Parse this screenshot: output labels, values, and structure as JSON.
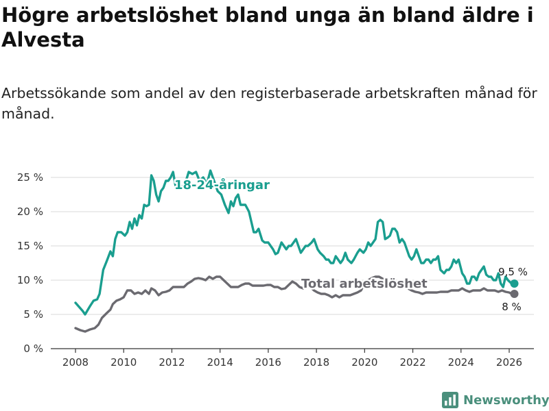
{
  "header": {
    "title": "Högre arbetslöshet bland unga än bland äldre i Alvesta",
    "subtitle": "Arbetssökande som andel av den registerbaserade arbetskraften månad för månad."
  },
  "brand": {
    "name": "Newsworthy",
    "logo_icon": "bar-chart-logo-icon",
    "color": "#4a8f7c"
  },
  "chart_data": {
    "type": "line",
    "title": "Högre arbetslöshet bland unga än bland äldre i Alvesta",
    "subtitle": "Arbetssökande som andel av den registerbaserade arbetskraften månad för månad.",
    "xlabel": "",
    "ylabel": "",
    "x_ticks": [
      "2008",
      "2010",
      "2012",
      "2014",
      "2016",
      "2018",
      "2020",
      "2022",
      "2024",
      "2026"
    ],
    "y_ticks": [
      "0 %",
      "5 %",
      "10 %",
      "15 %",
      "20 %",
      "25 %"
    ],
    "xlim": [
      2007.7,
      2026.8
    ],
    "ylim": [
      0,
      26.5
    ],
    "grid": true,
    "series": [
      {
        "name": "18-24-åringar",
        "color": "#1a9e8f",
        "end_label": "9,5 %",
        "points": [
          [
            2008.0,
            6.7
          ],
          [
            2008.3,
            5.5
          ],
          [
            2008.4,
            5.0
          ],
          [
            2008.6,
            6.2
          ],
          [
            2008.75,
            7.0
          ],
          [
            2008.9,
            7.2
          ],
          [
            2009.0,
            8.0
          ],
          [
            2009.15,
            11.5
          ],
          [
            2009.3,
            12.8
          ],
          [
            2009.45,
            14.2
          ],
          [
            2009.55,
            13.5
          ],
          [
            2009.65,
            16.0
          ],
          [
            2009.75,
            17.0
          ],
          [
            2009.9,
            17.0
          ],
          [
            2010.05,
            16.5
          ],
          [
            2010.15,
            17.0
          ],
          [
            2010.25,
            18.5
          ],
          [
            2010.35,
            17.5
          ],
          [
            2010.45,
            19.0
          ],
          [
            2010.55,
            18.0
          ],
          [
            2010.65,
            19.5
          ],
          [
            2010.75,
            19.0
          ],
          [
            2010.85,
            21.0
          ],
          [
            2010.95,
            20.8
          ],
          [
            2011.05,
            21.0
          ],
          [
            2011.15,
            25.3
          ],
          [
            2011.25,
            24.5
          ],
          [
            2011.35,
            22.5
          ],
          [
            2011.45,
            21.5
          ],
          [
            2011.55,
            23.0
          ],
          [
            2011.65,
            23.5
          ],
          [
            2011.75,
            24.5
          ],
          [
            2011.85,
            24.5
          ],
          [
            2011.95,
            25.0
          ],
          [
            2012.05,
            25.8
          ],
          [
            2012.15,
            23.8
          ],
          [
            2012.3,
            24.0
          ],
          [
            2012.5,
            23.5
          ],
          [
            2012.7,
            25.8
          ],
          [
            2012.85,
            25.5
          ],
          [
            2013.0,
            25.8
          ],
          [
            2013.15,
            24.5
          ],
          [
            2013.3,
            25.0
          ],
          [
            2013.45,
            24.0
          ],
          [
            2013.6,
            26.0
          ],
          [
            2013.75,
            24.5
          ],
          [
            2013.9,
            23.0
          ],
          [
            2014.05,
            22.5
          ],
          [
            2014.2,
            21.0
          ],
          [
            2014.35,
            19.8
          ],
          [
            2014.45,
            21.5
          ],
          [
            2014.55,
            20.8
          ],
          [
            2014.65,
            22.0
          ],
          [
            2014.75,
            22.5
          ],
          [
            2014.85,
            21.0
          ],
          [
            2014.95,
            21.0
          ],
          [
            2015.05,
            21.0
          ],
          [
            2015.2,
            20.0
          ],
          [
            2015.3,
            18.5
          ],
          [
            2015.4,
            17.0
          ],
          [
            2015.5,
            17.0
          ],
          [
            2015.6,
            17.5
          ],
          [
            2015.75,
            15.8
          ],
          [
            2015.85,
            15.5
          ],
          [
            2016.0,
            15.5
          ],
          [
            2016.1,
            15.0
          ],
          [
            2016.2,
            14.5
          ],
          [
            2016.3,
            13.8
          ],
          [
            2016.4,
            14.0
          ],
          [
            2016.55,
            15.5
          ],
          [
            2016.65,
            15.0
          ],
          [
            2016.75,
            14.5
          ],
          [
            2016.85,
            15.0
          ],
          [
            2016.95,
            15.0
          ],
          [
            2017.05,
            15.5
          ],
          [
            2017.15,
            16.0
          ],
          [
            2017.25,
            15.0
          ],
          [
            2017.35,
            14.0
          ],
          [
            2017.45,
            14.5
          ],
          [
            2017.55,
            15.0
          ],
          [
            2017.65,
            15.0
          ],
          [
            2017.8,
            15.5
          ],
          [
            2017.9,
            16.0
          ],
          [
            2018.05,
            14.5
          ],
          [
            2018.15,
            14.0
          ],
          [
            2018.3,
            13.5
          ],
          [
            2018.4,
            13.0
          ],
          [
            2018.5,
            13.0
          ],
          [
            2018.6,
            12.5
          ],
          [
            2018.7,
            12.5
          ],
          [
            2018.8,
            13.5
          ],
          [
            2018.9,
            13.0
          ],
          [
            2019.0,
            12.5
          ],
          [
            2019.1,
            13.0
          ],
          [
            2019.2,
            14.0
          ],
          [
            2019.3,
            13.0
          ],
          [
            2019.45,
            12.5
          ],
          [
            2019.55,
            13.0
          ],
          [
            2019.7,
            14.0
          ],
          [
            2019.8,
            14.5
          ],
          [
            2019.95,
            14.0
          ],
          [
            2020.05,
            14.5
          ],
          [
            2020.15,
            15.5
          ],
          [
            2020.25,
            15.0
          ],
          [
            2020.35,
            15.5
          ],
          [
            2020.45,
            16.0
          ],
          [
            2020.55,
            18.5
          ],
          [
            2020.65,
            18.8
          ],
          [
            2020.75,
            18.5
          ],
          [
            2020.85,
            16.0
          ],
          [
            2020.95,
            16.2
          ],
          [
            2021.05,
            16.5
          ],
          [
            2021.15,
            17.5
          ],
          [
            2021.25,
            17.5
          ],
          [
            2021.35,
            17.0
          ],
          [
            2021.45,
            15.5
          ],
          [
            2021.55,
            16.0
          ],
          [
            2021.65,
            15.5
          ],
          [
            2021.75,
            14.5
          ],
          [
            2021.85,
            13.5
          ],
          [
            2021.95,
            13.0
          ],
          [
            2022.05,
            13.5
          ],
          [
            2022.15,
            14.5
          ],
          [
            2022.25,
            13.5
          ],
          [
            2022.35,
            12.5
          ],
          [
            2022.45,
            12.5
          ],
          [
            2022.55,
            13.0
          ],
          [
            2022.65,
            13.0
          ],
          [
            2022.75,
            12.5
          ],
          [
            2022.85,
            13.0
          ],
          [
            2022.95,
            13.0
          ],
          [
            2023.05,
            13.5
          ],
          [
            2023.15,
            11.5
          ],
          [
            2023.3,
            11.0
          ],
          [
            2023.4,
            11.5
          ],
          [
            2023.5,
            11.5
          ],
          [
            2023.6,
            12.0
          ],
          [
            2023.7,
            13.0
          ],
          [
            2023.8,
            12.5
          ],
          [
            2023.9,
            13.0
          ],
          [
            2024.05,
            11.0
          ],
          [
            2024.15,
            10.5
          ],
          [
            2024.25,
            9.5
          ],
          [
            2024.35,
            9.5
          ],
          [
            2024.45,
            10.5
          ],
          [
            2024.55,
            10.5
          ],
          [
            2024.65,
            10.0
          ],
          [
            2024.75,
            11.0
          ],
          [
            2024.85,
            11.5
          ],
          [
            2024.95,
            12.0
          ],
          [
            2025.05,
            10.8
          ],
          [
            2025.15,
            10.5
          ],
          [
            2025.25,
            10.5
          ],
          [
            2025.35,
            10.0
          ],
          [
            2025.45,
            10.0
          ],
          [
            2025.55,
            11.0
          ],
          [
            2025.65,
            9.5
          ],
          [
            2025.75,
            9.0
          ],
          [
            2025.85,
            10.5
          ],
          [
            2025.95,
            10.0
          ],
          [
            2026.1,
            9.5
          ]
        ]
      },
      {
        "name": "Total arbetslöshet",
        "color": "#6b6a70",
        "end_label": "8 %",
        "points": [
          [
            2008.0,
            3.0
          ],
          [
            2008.2,
            2.7
          ],
          [
            2008.4,
            2.5
          ],
          [
            2008.6,
            2.8
          ],
          [
            2008.8,
            3.0
          ],
          [
            2008.95,
            3.5
          ],
          [
            2009.1,
            4.5
          ],
          [
            2009.3,
            5.2
          ],
          [
            2009.45,
            5.7
          ],
          [
            2009.55,
            6.5
          ],
          [
            2009.7,
            7.0
          ],
          [
            2009.85,
            7.2
          ],
          [
            2010.0,
            7.5
          ],
          [
            2010.15,
            8.5
          ],
          [
            2010.3,
            8.5
          ],
          [
            2010.45,
            8.0
          ],
          [
            2010.6,
            8.2
          ],
          [
            2010.75,
            8.0
          ],
          [
            2010.9,
            8.5
          ],
          [
            2011.05,
            8.0
          ],
          [
            2011.15,
            8.8
          ],
          [
            2011.3,
            8.5
          ],
          [
            2011.45,
            7.8
          ],
          [
            2011.6,
            8.2
          ],
          [
            2011.75,
            8.3
          ],
          [
            2011.9,
            8.5
          ],
          [
            2012.05,
            9.0
          ],
          [
            2012.2,
            9.0
          ],
          [
            2012.35,
            9.0
          ],
          [
            2012.5,
            9.0
          ],
          [
            2012.65,
            9.5
          ],
          [
            2012.8,
            9.8
          ],
          [
            2012.95,
            10.2
          ],
          [
            2013.1,
            10.3
          ],
          [
            2013.25,
            10.2
          ],
          [
            2013.4,
            10.0
          ],
          [
            2013.55,
            10.5
          ],
          [
            2013.7,
            10.2
          ],
          [
            2013.85,
            10.5
          ],
          [
            2014.0,
            10.5
          ],
          [
            2014.15,
            10.0
          ],
          [
            2014.3,
            9.5
          ],
          [
            2014.45,
            9.0
          ],
          [
            2014.6,
            9.0
          ],
          [
            2014.75,
            9.0
          ],
          [
            2014.9,
            9.3
          ],
          [
            2015.05,
            9.5
          ],
          [
            2015.2,
            9.5
          ],
          [
            2015.35,
            9.2
          ],
          [
            2015.5,
            9.2
          ],
          [
            2015.65,
            9.2
          ],
          [
            2015.8,
            9.2
          ],
          [
            2015.95,
            9.3
          ],
          [
            2016.1,
            9.3
          ],
          [
            2016.25,
            9.0
          ],
          [
            2016.4,
            9.0
          ],
          [
            2016.55,
            8.7
          ],
          [
            2016.7,
            8.8
          ],
          [
            2016.85,
            9.3
          ],
          [
            2017.0,
            9.8
          ],
          [
            2017.15,
            9.5
          ],
          [
            2017.3,
            9.0
          ],
          [
            2017.45,
            8.8
          ],
          [
            2017.6,
            9.0
          ],
          [
            2017.75,
            9.0
          ],
          [
            2017.9,
            8.5
          ],
          [
            2018.05,
            8.2
          ],
          [
            2018.2,
            8.0
          ],
          [
            2018.35,
            8.0
          ],
          [
            2018.5,
            7.8
          ],
          [
            2018.65,
            7.5
          ],
          [
            2018.8,
            7.8
          ],
          [
            2018.95,
            7.5
          ],
          [
            2019.1,
            7.8
          ],
          [
            2019.25,
            7.8
          ],
          [
            2019.4,
            7.8
          ],
          [
            2019.55,
            8.0
          ],
          [
            2019.7,
            8.2
          ],
          [
            2019.85,
            8.5
          ],
          [
            2020.0,
            9.5
          ],
          [
            2020.15,
            10.0
          ],
          [
            2020.3,
            10.3
          ],
          [
            2020.45,
            10.5
          ],
          [
            2020.6,
            10.5
          ],
          [
            2020.75,
            10.2
          ],
          [
            2020.9,
            10.0
          ],
          [
            2021.05,
            9.8
          ],
          [
            2021.2,
            9.5
          ],
          [
            2021.35,
            9.5
          ],
          [
            2021.5,
            9.3
          ],
          [
            2021.65,
            9.0
          ],
          [
            2021.8,
            8.8
          ],
          [
            2021.95,
            8.5
          ],
          [
            2022.1,
            8.3
          ],
          [
            2022.25,
            8.2
          ],
          [
            2022.4,
            8.0
          ],
          [
            2022.55,
            8.2
          ],
          [
            2022.7,
            8.2
          ],
          [
            2022.85,
            8.2
          ],
          [
            2023.0,
            8.2
          ],
          [
            2023.15,
            8.3
          ],
          [
            2023.3,
            8.3
          ],
          [
            2023.45,
            8.3
          ],
          [
            2023.6,
            8.5
          ],
          [
            2023.75,
            8.5
          ],
          [
            2023.9,
            8.5
          ],
          [
            2024.05,
            8.8
          ],
          [
            2024.2,
            8.5
          ],
          [
            2024.35,
            8.3
          ],
          [
            2024.5,
            8.5
          ],
          [
            2024.65,
            8.5
          ],
          [
            2024.8,
            8.5
          ],
          [
            2024.95,
            8.8
          ],
          [
            2025.1,
            8.5
          ],
          [
            2025.25,
            8.5
          ],
          [
            2025.4,
            8.5
          ],
          [
            2025.55,
            8.3
          ],
          [
            2025.7,
            8.5
          ],
          [
            2025.85,
            8.3
          ],
          [
            2026.0,
            8.2
          ],
          [
            2026.1,
            8.0
          ]
        ]
      }
    ]
  }
}
